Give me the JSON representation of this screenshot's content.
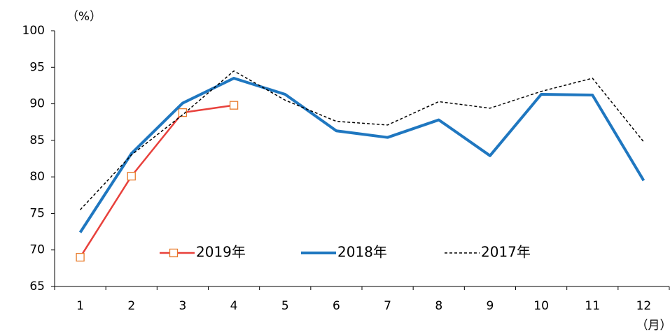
{
  "chart_data": {
    "type": "line",
    "y_unit": "（%）",
    "x_unit": "（月）",
    "categories": [
      "1",
      "2",
      "3",
      "4",
      "5",
      "6",
      "7",
      "8",
      "9",
      "10",
      "11",
      "12"
    ],
    "series": [
      {
        "name": "2019年",
        "color": "#e8413c",
        "marker": "square",
        "marker_color": "#e87a2a",
        "width": 2.5,
        "dash": "solid",
        "values": [
          69.0,
          80.1,
          88.8,
          89.8,
          null,
          null,
          null,
          null,
          null,
          null,
          null,
          null
        ]
      },
      {
        "name": "2018年",
        "color": "#1f77c0",
        "width": 4,
        "dash": "solid",
        "values": [
          72.4,
          83.2,
          90.1,
          93.5,
          91.3,
          86.3,
          85.4,
          87.8,
          82.9,
          91.3,
          91.2,
          79.5
        ]
      },
      {
        "name": "2017年",
        "color": "#000000",
        "width": 1.5,
        "dash": "dashed",
        "values": [
          75.5,
          83.0,
          88.5,
          94.5,
          90.5,
          87.6,
          87.1,
          90.3,
          89.4,
          91.7,
          93.5,
          84.8
        ]
      }
    ],
    "ylim": [
      65,
      100
    ],
    "yticks": [
      65,
      70,
      75,
      80,
      85,
      90,
      95,
      100
    ],
    "grid": false,
    "legend": "lower center"
  }
}
